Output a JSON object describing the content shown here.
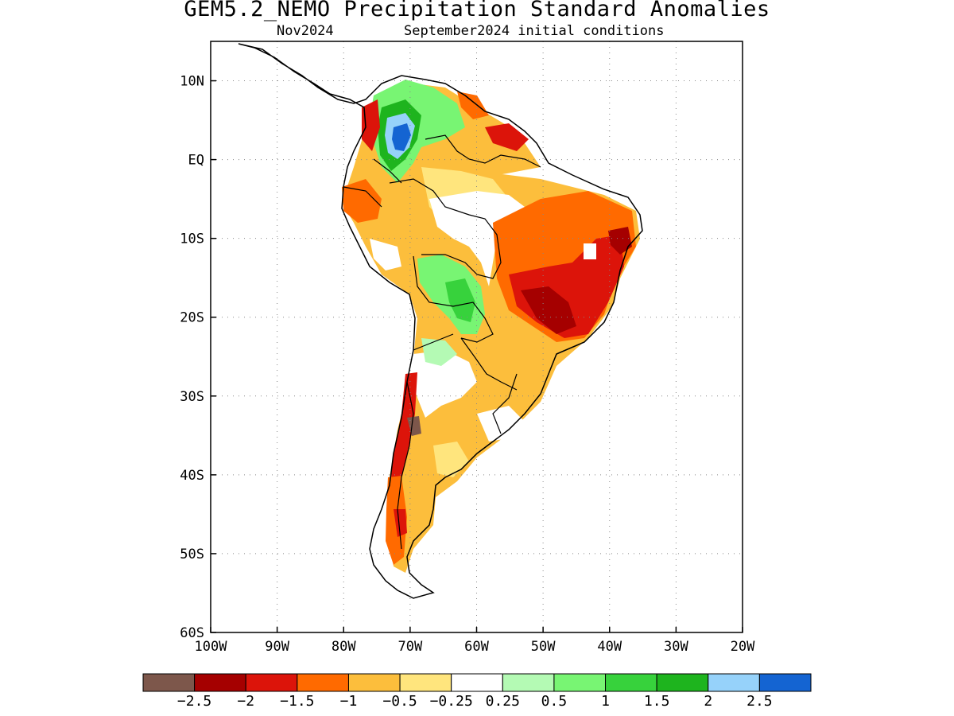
{
  "title": "GEM5.2_NEMO Precipitation Standard Anomalies",
  "subtitle_left": "Nov2024",
  "subtitle_right": "September2024 initial conditions",
  "map": {
    "lon_range": [
      -100,
      -20
    ],
    "lat_range": [
      -60,
      15
    ],
    "lon_tick_labels": [
      "100W",
      "90W",
      "80W",
      "70W",
      "60W",
      "50W",
      "40W",
      "30W",
      "20W"
    ],
    "lon_ticks": [
      -100,
      -90,
      -80,
      -70,
      -60,
      -50,
      -40,
      -30,
      -20
    ],
    "lat_tick_labels": [
      "10N",
      "EQ",
      "10S",
      "20S",
      "30S",
      "40S",
      "50S",
      "60S"
    ],
    "lat_ticks": [
      10,
      0,
      -10,
      -20,
      -30,
      -40,
      -50,
      -60
    ],
    "grid": "dotted"
  },
  "legend": {
    "colors": [
      "#7d574b",
      "#a50000",
      "#dc140a",
      "#ff6a00",
      "#fcbe3c",
      "#ffe57d",
      "#ffffff",
      "#b4fab4",
      "#78f573",
      "#37d23c",
      "#1eb41e",
      "#96d2fa",
      "#1464d2"
    ],
    "labels": [
      "−2.5",
      "−2",
      "−1.5",
      "−1",
      "−0.5",
      "−0.25",
      "0.25",
      "0.5",
      "1",
      "1.5",
      "2",
      "2.5"
    ]
  },
  "anomaly_regions": [
    {
      "level": "-0.5",
      "color": "#fcbe3c"
    },
    {
      "level": "-1",
      "color": "#ff6a00"
    },
    {
      "level": "-1.5",
      "color": "#dc140a"
    },
    {
      "level": "-2",
      "color": "#a50000"
    },
    {
      "level": "-2.5",
      "color": "#7d574b"
    },
    {
      "level": "0.25",
      "color": "#ffffff"
    },
    {
      "level": "0.5",
      "color": "#b4fab4"
    },
    {
      "level": "1",
      "color": "#78f573"
    },
    {
      "level": "1.5",
      "color": "#37d23c"
    },
    {
      "level": "2",
      "color": "#1eb41e"
    },
    {
      "level": "2.5",
      "color": "#96d2fa"
    }
  ]
}
